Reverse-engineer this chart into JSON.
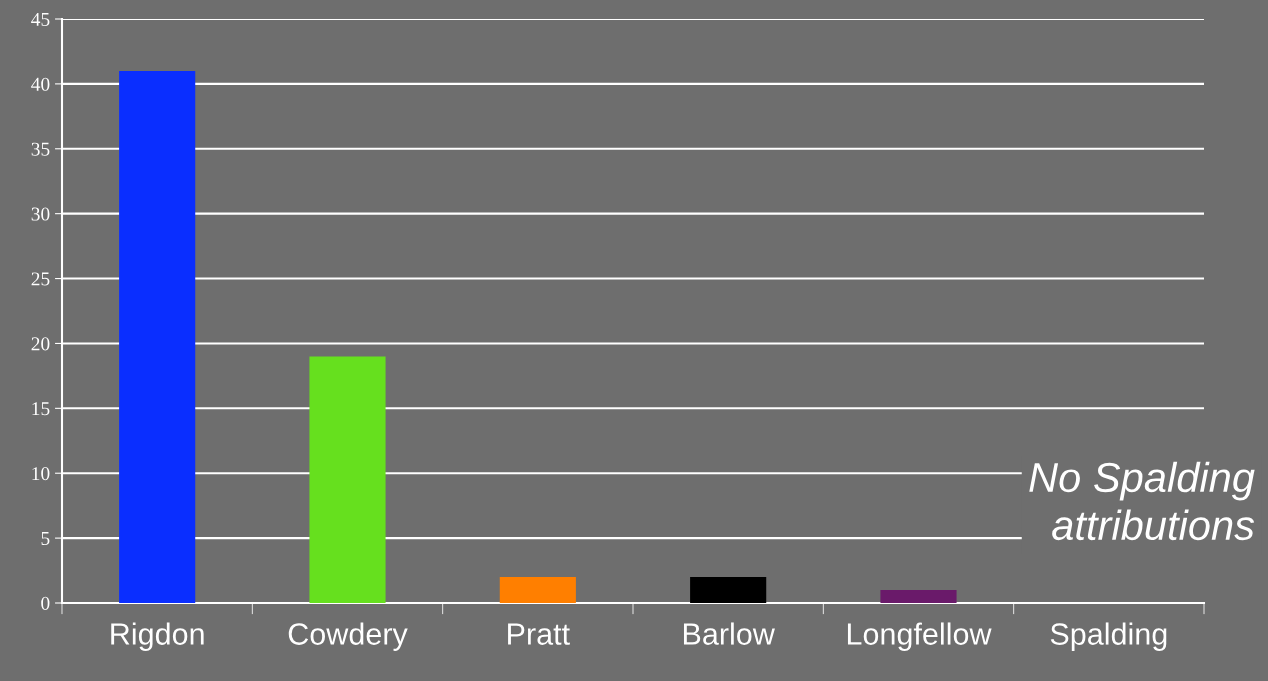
{
  "chart_data": {
    "type": "bar",
    "categories": [
      "Rigdon",
      "Cowdery",
      "Pratt",
      "Barlow",
      "Longfellow",
      "Spalding"
    ],
    "values": [
      41,
      19,
      2,
      2,
      1,
      0
    ],
    "colors": [
      "#0a2eff",
      "#66e01e",
      "#ff7f00",
      "#000000",
      "#6a1a6a",
      "#6a1a6a"
    ],
    "ylim": [
      0,
      45
    ],
    "yticks": [
      0,
      5,
      10,
      15,
      20,
      25,
      30,
      35,
      40,
      45
    ],
    "grid": "y",
    "legend": false,
    "annotations": [
      "No Spalding\nattributions"
    ]
  }
}
